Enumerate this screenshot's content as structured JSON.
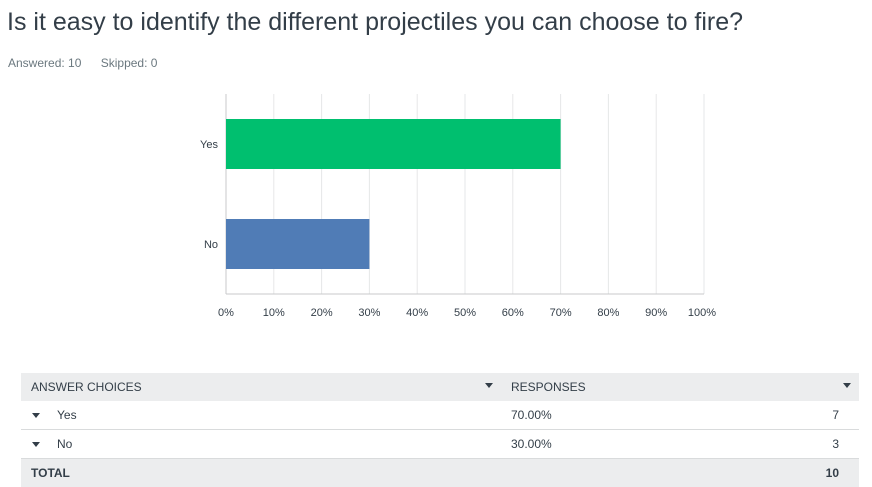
{
  "question": {
    "title": "Is it easy to identify the different projectiles you can choose to fire?",
    "answered": "Answered: 10",
    "skipped": "Skipped: 0"
  },
  "chart_data": {
    "type": "bar",
    "orientation": "horizontal",
    "categories": [
      "Yes",
      "No"
    ],
    "values": [
      70,
      30
    ],
    "colors": [
      "#00bf6f",
      "#507cb6"
    ],
    "xlim": [
      0,
      100
    ],
    "x_ticks": [
      "0%",
      "10%",
      "20%",
      "30%",
      "40%",
      "50%",
      "60%",
      "70%",
      "80%",
      "90%",
      "100%"
    ],
    "grid": true
  },
  "table": {
    "headers": {
      "answer_choices": "ANSWER CHOICES",
      "responses": "RESPONSES"
    },
    "rows": [
      {
        "label": "Yes",
        "percent": "70.00%",
        "count": "7"
      },
      {
        "label": "No",
        "percent": "30.00%",
        "count": "3"
      }
    ],
    "total": {
      "label": "TOTAL",
      "count": "10"
    }
  }
}
